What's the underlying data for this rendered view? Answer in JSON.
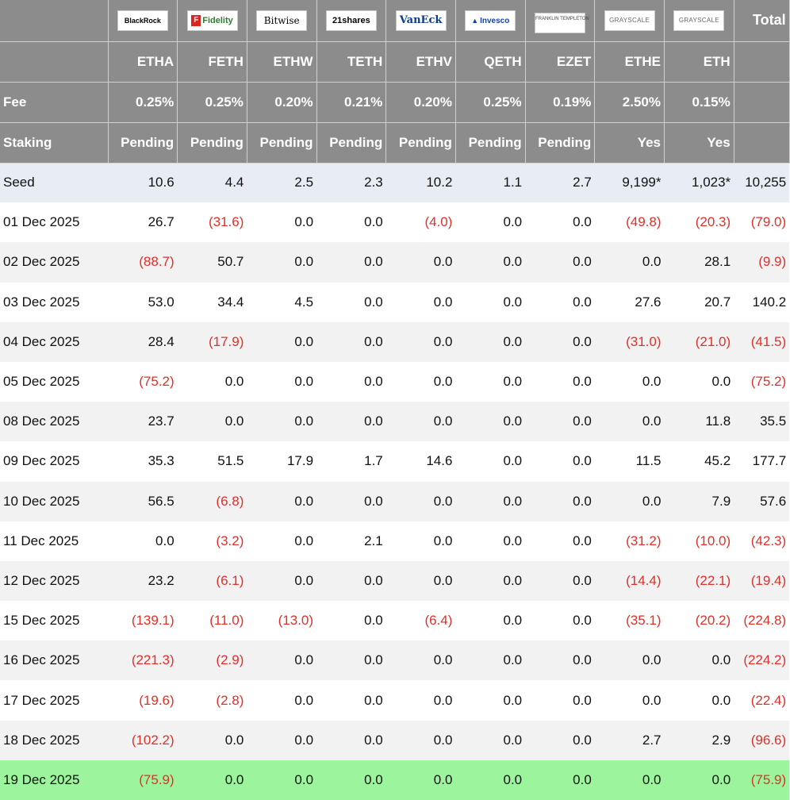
{
  "header": {
    "logos": [
      {
        "key": "blackrock",
        "text": "BlackRock"
      },
      {
        "key": "fidelity",
        "text": "Fidelity",
        "badge": "F"
      },
      {
        "key": "bitwise",
        "text": "Bitwise"
      },
      {
        "key": "shares",
        "text": "21shares"
      },
      {
        "key": "vaneck",
        "text": "VanEck"
      },
      {
        "key": "invesco",
        "text": "Invesco",
        "badge": "▲"
      },
      {
        "key": "franklin",
        "text": "FRANKLIN TEMPLETON"
      },
      {
        "key": "grayscale",
        "text": "GRAYSCALE"
      },
      {
        "key": "grayscale",
        "text": "GRAYSCALE"
      }
    ],
    "total_label": "Total",
    "tickers": [
      "ETHA",
      "FETH",
      "ETHW",
      "TETH",
      "ETHV",
      "QETH",
      "EZET",
      "ETHE",
      "ETH"
    ],
    "fee_label": "Fee",
    "fees": [
      "0.25%",
      "0.25%",
      "0.20%",
      "0.21%",
      "0.20%",
      "0.25%",
      "0.19%",
      "2.50%",
      "0.15%"
    ],
    "staking_label": "Staking",
    "staking": [
      "Pending",
      "Pending",
      "Pending",
      "Pending",
      "Pending",
      "Pending",
      "Pending",
      "Yes",
      "Yes"
    ]
  },
  "rows": [
    {
      "label": "Seed",
      "values": [
        "10.6",
        "4.4",
        "2.5",
        "2.3",
        "10.2",
        "1.1",
        "2.7",
        "9,199*",
        "1,023*",
        "10,255"
      ]
    },
    {
      "label": "01 Dec 2025",
      "values": [
        "26.7",
        "(31.6)",
        "0.0",
        "0.0",
        "(4.0)",
        "0.0",
        "0.0",
        "(49.8)",
        "(20.3)",
        "(79.0)"
      ]
    },
    {
      "label": "02 Dec 2025",
      "values": [
        "(88.7)",
        "50.7",
        "0.0",
        "0.0",
        "0.0",
        "0.0",
        "0.0",
        "0.0",
        "28.1",
        "(9.9)"
      ]
    },
    {
      "label": "03 Dec 2025",
      "values": [
        "53.0",
        "34.4",
        "4.5",
        "0.0",
        "0.0",
        "0.0",
        "0.0",
        "27.6",
        "20.7",
        "140.2"
      ]
    },
    {
      "label": "04 Dec 2025",
      "values": [
        "28.4",
        "(17.9)",
        "0.0",
        "0.0",
        "0.0",
        "0.0",
        "0.0",
        "(31.0)",
        "(21.0)",
        "(41.5)"
      ]
    },
    {
      "label": "05 Dec 2025",
      "values": [
        "(75.2)",
        "0.0",
        "0.0",
        "0.0",
        "0.0",
        "0.0",
        "0.0",
        "0.0",
        "0.0",
        "(75.2)"
      ]
    },
    {
      "label": "08 Dec 2025",
      "values": [
        "23.7",
        "0.0",
        "0.0",
        "0.0",
        "0.0",
        "0.0",
        "0.0",
        "0.0",
        "11.8",
        "35.5"
      ]
    },
    {
      "label": "09 Dec 2025",
      "values": [
        "35.3",
        "51.5",
        "17.9",
        "1.7",
        "14.6",
        "0.0",
        "0.0",
        "11.5",
        "45.2",
        "177.7"
      ]
    },
    {
      "label": "10 Dec 2025",
      "values": [
        "56.5",
        "(6.8)",
        "0.0",
        "0.0",
        "0.0",
        "0.0",
        "0.0",
        "0.0",
        "7.9",
        "57.6"
      ]
    },
    {
      "label": "11 Dec 2025",
      "values": [
        "0.0",
        "(3.2)",
        "0.0",
        "2.1",
        "0.0",
        "0.0",
        "0.0",
        "(31.2)",
        "(10.0)",
        "(42.3)"
      ]
    },
    {
      "label": "12 Dec 2025",
      "values": [
        "23.2",
        "(6.1)",
        "0.0",
        "0.0",
        "0.0",
        "0.0",
        "0.0",
        "(14.4)",
        "(22.1)",
        "(19.4)"
      ]
    },
    {
      "label": "15 Dec 2025",
      "values": [
        "(139.1)",
        "(11.0)",
        "(13.0)",
        "0.0",
        "(6.4)",
        "0.0",
        "0.0",
        "(35.1)",
        "(20.2)",
        "(224.8)"
      ]
    },
    {
      "label": "16 Dec 2025",
      "values": [
        "(221.3)",
        "(2.9)",
        "0.0",
        "0.0",
        "0.0",
        "0.0",
        "0.0",
        "0.0",
        "0.0",
        "(224.2)"
      ]
    },
    {
      "label": "17 Dec 2025",
      "values": [
        "(19.6)",
        "(2.8)",
        "0.0",
        "0.0",
        "0.0",
        "0.0",
        "0.0",
        "0.0",
        "0.0",
        "(22.4)"
      ]
    },
    {
      "label": "18 Dec 2025",
      "values": [
        "(102.2)",
        "0.0",
        "0.0",
        "0.0",
        "0.0",
        "0.0",
        "0.0",
        "2.7",
        "2.9",
        "(96.6)"
      ]
    },
    {
      "label": "19 Dec 2025",
      "values": [
        "(75.9)",
        "0.0",
        "0.0",
        "0.0",
        "0.0",
        "0.0",
        "0.0",
        "0.0",
        "0.0",
        "(75.9)"
      ]
    }
  ],
  "colors": {
    "header_bg": "#8c8c8c",
    "negative": "#e0302a",
    "seed_row": "#e8ecf5",
    "alt_row": "#f2f2f2",
    "latest_row": "#9cf59c"
  }
}
